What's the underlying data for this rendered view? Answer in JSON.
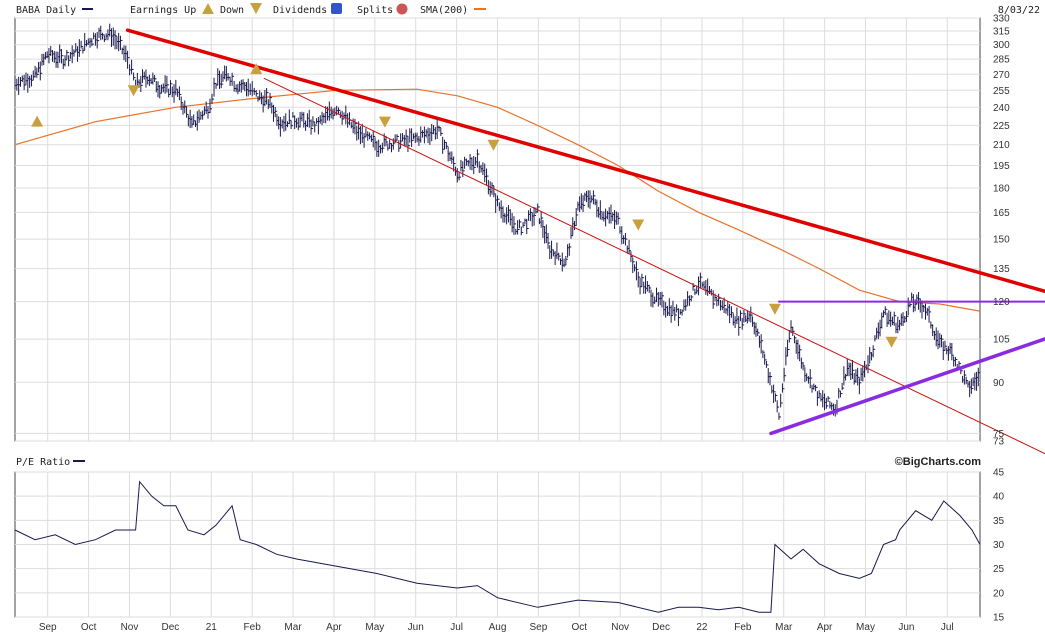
{
  "header": {
    "symbol_label": "BABA Daily",
    "legend": {
      "earnings_up": "Earnings Up",
      "down": "Down",
      "dividends": "Dividends",
      "splits": "Splits",
      "sma": "SMA(200)"
    },
    "date": "8/03/22"
  },
  "colors": {
    "price": "#1a1a4e",
    "sma": "#e8732a",
    "resistance": "#e00000",
    "thin_trend": "#cc1111",
    "triangle": "#8a2be2",
    "earnings_marker": "#c9a040",
    "dividend_badge": "#3355cc",
    "split_badge": "#cc5555",
    "grid": "#dddddd"
  },
  "icons": {
    "earnings_up_icon": "triangle-up",
    "earnings_down_icon": "triangle-down",
    "dividend_icon": "square-D",
    "split_icon": "circle-S"
  },
  "pe_panel": {
    "label": "P/E Ratio",
    "brand": "©BigCharts.com"
  },
  "chart_data": [
    {
      "type": "line",
      "title": "BABA Daily",
      "y_scale": "log",
      "ylim": [
        73,
        330
      ],
      "y_ticks": [
        73,
        75,
        90,
        105,
        120,
        135,
        150,
        165,
        180,
        195,
        210,
        225,
        240,
        255,
        270,
        285,
        300,
        315,
        330
      ],
      "x_ticks": [
        "Sep",
        "Oct",
        "Nov",
        "Dec",
        "21",
        "Feb",
        "Mar",
        "Apr",
        "May",
        "Jun",
        "Jul",
        "Aug",
        "Sep",
        "Oct",
        "Nov",
        "Dec",
        "22",
        "Feb",
        "Mar",
        "Apr",
        "May",
        "Jun",
        "Jul"
      ],
      "x_range": [
        0,
        24
      ],
      "series": [
        {
          "name": "BABA Daily",
          "style": "ohlc",
          "x": [
            0,
            0.5,
            0.8,
            1.2,
            1.6,
            2.0,
            2.4,
            2.8,
            3.0,
            3.3,
            3.6,
            4.0,
            4.4,
            4.8,
            5.0,
            5.3,
            5.5,
            5.8,
            6.0,
            6.3,
            6.6,
            7.0,
            7.5,
            8.0,
            8.5,
            9.0,
            9.5,
            10.0,
            10.5,
            11.0,
            11.5,
            12.0,
            12.5,
            13.0,
            13.3,
            13.7,
            14.0,
            14.3,
            14.6,
            15.0,
            15.5,
            16.0,
            16.5,
            17.0,
            17.5,
            18.0,
            18.3,
            18.6,
            19.0,
            19.3,
            19.6,
            20.0,
            20.4,
            20.7,
            21.0,
            21.3,
            21.6,
            22.0,
            22.3,
            22.6,
            23.0,
            23.3,
            23.7,
            24.0
          ],
          "values": [
            262,
            268,
            290,
            285,
            295,
            310,
            312,
            285,
            260,
            268,
            258,
            255,
            225,
            240,
            262,
            270,
            260,
            258,
            250,
            245,
            228,
            230,
            225,
            240,
            220,
            210,
            212,
            215,
            222,
            190,
            200,
            170,
            155,
            165,
            145,
            138,
            168,
            175,
            165,
            160,
            130,
            120,
            115,
            128,
            120,
            112,
            115,
            100,
            80,
            110,
            95,
            85,
            82,
            95,
            90,
            100,
            115,
            110,
            120,
            118,
            103,
            100,
            88,
            92
          ]
        },
        {
          "name": "SMA(200)",
          "x": [
            0,
            2,
            4,
            6,
            8,
            10,
            11,
            12,
            13,
            14,
            15,
            16,
            17,
            18,
            19,
            20,
            21,
            22,
            23,
            24
          ],
          "values": [
            210,
            228,
            240,
            248,
            255,
            256,
            250,
            240,
            225,
            210,
            195,
            178,
            165,
            155,
            145,
            135,
            125,
            120,
            119,
            116
          ]
        },
        {
          "name": "Downtrend (thick)",
          "x": [
            2.8,
            24
          ],
          "values": [
            316,
            133
          ]
        },
        {
          "name": "Downtrend (thin)",
          "x": [
            6.2,
            24
          ],
          "values": [
            266,
            78
          ]
        },
        {
          "name": "Horizontal resistance",
          "x": [
            19.0,
            24
          ],
          "values": [
            120,
            120
          ]
        },
        {
          "name": "Rising support",
          "x": [
            18.8,
            24
          ],
          "values": [
            75,
            97
          ]
        }
      ],
      "earnings_markers": [
        {
          "kind": "up",
          "x": 0.55,
          "value": 228
        },
        {
          "kind": "down",
          "x": 2.95,
          "value": 255
        },
        {
          "kind": "up",
          "x": 6.0,
          "value": 275
        },
        {
          "kind": "down",
          "x": 9.2,
          "value": 228
        },
        {
          "kind": "down",
          "x": 11.9,
          "value": 210
        },
        {
          "kind": "down",
          "x": 15.5,
          "value": 158
        },
        {
          "kind": "down",
          "x": 18.9,
          "value": 117
        },
        {
          "kind": "down",
          "x": 21.8,
          "value": 104
        }
      ]
    },
    {
      "type": "line",
      "title": "P/E Ratio",
      "ylim": [
        15,
        45
      ],
      "y_ticks": [
        15,
        20,
        25,
        30,
        35,
        40,
        45
      ],
      "x_ticks": [
        "Sep",
        "Oct",
        "Nov",
        "Dec",
        "21",
        "Feb",
        "Mar",
        "Apr",
        "May",
        "Jun",
        "Jul",
        "Aug",
        "Sep",
        "Oct",
        "Nov",
        "Dec",
        "22",
        "Feb",
        "Mar",
        "Apr",
        "May",
        "Jun",
        "Jul"
      ],
      "x_range": [
        0,
        24
      ],
      "series": [
        {
          "name": "P/E Ratio",
          "x": [
            0,
            0.5,
            1.0,
            1.5,
            2.0,
            2.5,
            3.0,
            3.1,
            3.4,
            3.7,
            4.0,
            4.3,
            4.7,
            5.0,
            5.4,
            5.6,
            6.0,
            6.5,
            7.0,
            8.0,
            9.0,
            10.0,
            11.0,
            11.5,
            12.0,
            13.0,
            14.0,
            15.0,
            16.0,
            16.5,
            17.0,
            17.5,
            18.0,
            18.5,
            18.8,
            18.9,
            19.3,
            19.6,
            20.0,
            20.5,
            21.0,
            21.3,
            21.6,
            21.9,
            22.0,
            22.4,
            22.8,
            23.1,
            23.5,
            23.8,
            24.0
          ],
          "values": [
            33,
            31,
            32,
            30,
            31,
            33,
            33,
            43,
            40,
            38,
            38,
            33,
            32,
            34,
            38,
            31,
            30,
            28,
            27,
            25.5,
            24,
            22,
            21,
            21.5,
            19,
            17,
            18.5,
            18,
            16,
            17,
            17,
            16.5,
            17,
            16,
            16,
            30,
            27,
            29,
            26,
            24,
            23,
            24,
            30,
            31,
            33,
            37,
            35,
            39,
            36,
            33,
            30
          ]
        }
      ]
    }
  ]
}
